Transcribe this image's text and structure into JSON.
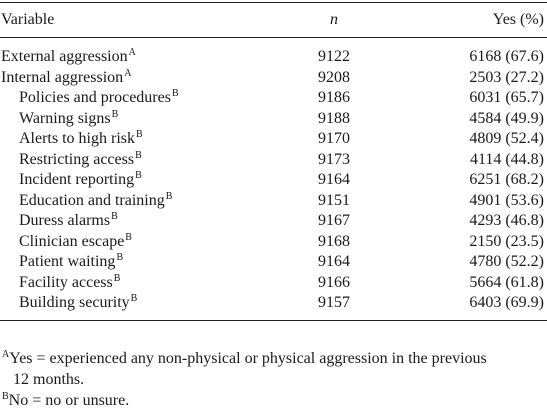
{
  "header": {
    "variable": "Variable",
    "n": "n",
    "yes": "Yes (%)"
  },
  "rows": [
    {
      "label": "External aggression",
      "sup": "A",
      "n": "9122",
      "yes": "6168 (67.6)",
      "indent": false
    },
    {
      "label": "Internal aggression",
      "sup": "A",
      "n": "9208",
      "yes": "2503 (27.2)",
      "indent": false
    },
    {
      "label": "Policies and procedures",
      "sup": "B",
      "n": "9186",
      "yes": "6031 (65.7)",
      "indent": true
    },
    {
      "label": "Warning signs",
      "sup": "B",
      "n": "9188",
      "yes": "4584 (49.9)",
      "indent": true
    },
    {
      "label": "Alerts to high risk",
      "sup": "B",
      "n": "9170",
      "yes": "4809 (52.4)",
      "indent": true
    },
    {
      "label": "Restricting access",
      "sup": "B",
      "n": "9173",
      "yes": "4114 (44.8)",
      "indent": true
    },
    {
      "label": "Incident reporting",
      "sup": "B",
      "n": "9164",
      "yes": "6251 (68.2)",
      "indent": true
    },
    {
      "label": "Education and training",
      "sup": "B",
      "n": "9151",
      "yes": "4901 (53.6)",
      "indent": true
    },
    {
      "label": "Duress alarms",
      "sup": "B",
      "n": "9167",
      "yes": "4293 (46.8)",
      "indent": true
    },
    {
      "label": "Clinician escape",
      "sup": "B",
      "n": "9168",
      "yes": "2150 (23.5)",
      "indent": true
    },
    {
      "label": "Patient waiting",
      "sup": "B",
      "n": "9164",
      "yes": "4780 (52.2)",
      "indent": true
    },
    {
      "label": "Facility access",
      "sup": "B",
      "n": "9166",
      "yes": "5664 (61.8)",
      "indent": true
    },
    {
      "label": "Building security",
      "sup": "B",
      "n": "9157",
      "yes": "6403 (69.9)",
      "indent": true
    }
  ],
  "notes": {
    "a_mark": "A",
    "a_line1": "Yes = experienced any non-physical or physical aggression in the previous",
    "a_line2": "12 months.",
    "b_mark": "B",
    "b_text": "No = no or unsure."
  }
}
